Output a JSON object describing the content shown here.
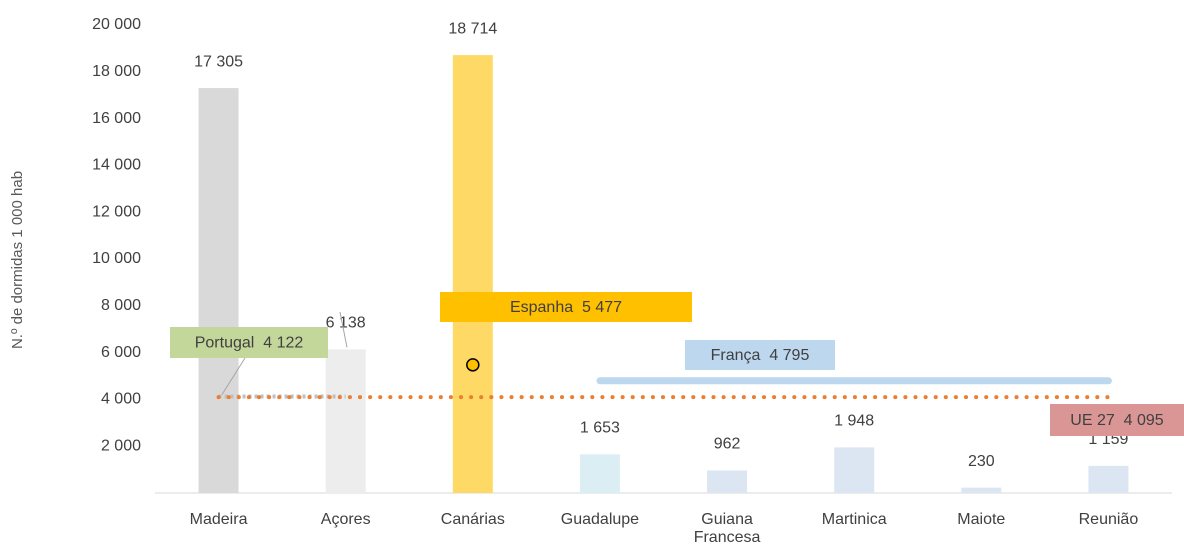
{
  "chart_data": {
    "type": "bar",
    "y_axis_label": "N.º de dormidas  1 000 hab",
    "categories": [
      "Madeira",
      "Açores",
      "Canárias",
      "Guadalupe",
      "Guiana\nFrancesa",
      "Martinica",
      "Maiote",
      "Reunião"
    ],
    "values": [
      17305,
      6138,
      18714,
      1653,
      962,
      1948,
      230,
      1159
    ],
    "value_labels": [
      "17 305",
      "6 138",
      "18 714",
      "1 653",
      "962",
      "1 948",
      "230",
      "1 159"
    ],
    "colors": [
      "#d9d9d9",
      "#ededed",
      "#ffd966",
      "#daeef3",
      "#dce6f2",
      "#dce6f2",
      "#dce6f2",
      "#dce6f2"
    ],
    "ylim": [
      0,
      20000
    ],
    "yticks": [
      {
        "value": 2000,
        "label": "2 000"
      },
      {
        "value": 4000,
        "label": "4 000"
      },
      {
        "value": 6000,
        "label": "6 000"
      },
      {
        "value": 8000,
        "label": "8 000"
      },
      {
        "value": 10000,
        "label": "10 000"
      },
      {
        "value": 12000,
        "label": "12 000"
      },
      {
        "value": 14000,
        "label": "14 000"
      },
      {
        "value": 16000,
        "label": "16 000"
      },
      {
        "value": 18000,
        "label": "18 000"
      },
      {
        "value": 20000,
        "label": "20 000"
      }
    ],
    "reference_lines": [
      {
        "label": "Portugal  4 122",
        "value": 4122,
        "color": "#bfbfbf",
        "box_color": "#c4d79b"
      },
      {
        "label": "Espanha  5 477",
        "value": 5477,
        "color": "#ffc000",
        "box_color": "#ffc000"
      },
      {
        "label": "França  4 795",
        "value": 4795,
        "color": "#bdd7ee",
        "box_color": "#bdd7ee"
      },
      {
        "label": "UE 27  4 095",
        "value": 4095,
        "color": "#ed7d31",
        "box_color": "#da9694"
      }
    ]
  }
}
